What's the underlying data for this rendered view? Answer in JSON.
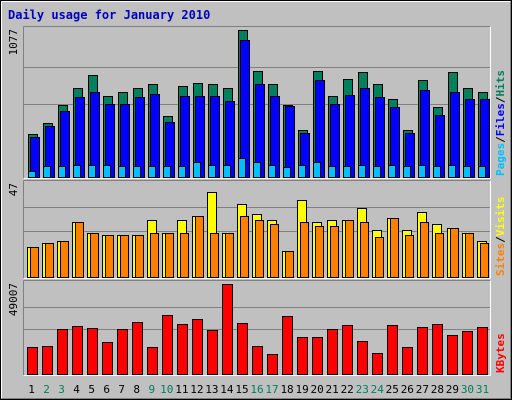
{
  "chart_data": [
    {
      "type": "bar",
      "title": "Daily usage for January 2010",
      "categories": [
        "1",
        "2",
        "3",
        "4",
        "5",
        "6",
        "7",
        "8",
        "9",
        "10",
        "11",
        "12",
        "13",
        "14",
        "15",
        "16",
        "17",
        "18",
        "19",
        "20",
        "21",
        "22",
        "23",
        "24",
        "25",
        "26",
        "27",
        "28",
        "29",
        "30",
        "31"
      ],
      "weekend_days": [
        "2",
        "3",
        "9",
        "10",
        "16",
        "17",
        "23",
        "24",
        "30",
        "31"
      ],
      "ymax_label": "1077",
      "ylim": [
        0,
        1077
      ],
      "right_legend": [
        {
          "name": "Pages",
          "color": "#00c0ff"
        },
        {
          "name": "Files",
          "color": "#0000ff"
        },
        {
          "name": "Hits",
          "color": "#00805c"
        }
      ],
      "series": [
        {
          "name": "Hits",
          "color": "#00805c",
          "values": [
            312,
            392,
            527,
            654,
            744,
            596,
            624,
            654,
            685,
            445,
            670,
            687,
            685,
            654,
            1077,
            780,
            685,
            527,
            342,
            780,
            592,
            715,
            766,
            685,
            572,
            342,
            713,
            512,
            766,
            654,
            624
          ]
        },
        {
          "name": "Files",
          "color": "#0000ff",
          "values": [
            295,
            377,
            480,
            585,
            624,
            535,
            537,
            585,
            606,
            403,
            597,
            597,
            593,
            560,
            1004,
            685,
            590,
            520,
            325,
            713,
            535,
            601,
            653,
            589,
            512,
            322,
            640,
            453,
            624,
            571,
            573
          ]
        },
        {
          "name": "Pages",
          "color": "#00c0ff",
          "values": [
            47,
            79,
            79,
            86,
            86,
            86,
            79,
            79,
            79,
            79,
            79,
            111,
            86,
            86,
            137,
            111,
            86,
            75,
            86,
            111,
            79,
            79,
            86,
            79,
            86,
            79,
            86,
            79,
            86,
            79,
            79
          ]
        }
      ]
    },
    {
      "type": "bar",
      "ymax_label": "47",
      "ylim": [
        0,
        47
      ],
      "right_legend": [
        {
          "name": "Sites",
          "color": "#ff8000"
        },
        {
          "name": "Visits",
          "color": "#ffff00"
        }
      ],
      "series": [
        {
          "name": "Visits",
          "color": "#ffff00",
          "values": [
            15,
            17,
            18,
            28,
            22,
            21,
            21,
            21,
            29,
            22,
            29,
            31,
            43,
            22,
            37,
            32,
            29,
            13,
            39,
            28,
            29,
            29,
            35,
            24,
            30,
            24,
            33,
            27,
            25,
            22,
            18
          ]
        },
        {
          "name": "Sites",
          "color": "#ff8000",
          "values": [
            15,
            17,
            18,
            28,
            22,
            21,
            21,
            21,
            22,
            22,
            22,
            31,
            22,
            22,
            31,
            29,
            27,
            13,
            28,
            26,
            26,
            29,
            28,
            20,
            30,
            21,
            28,
            22,
            25,
            22,
            17
          ]
        }
      ]
    },
    {
      "type": "bar",
      "ymax_label": "49007",
      "ylim": [
        0,
        49007
      ],
      "right_legend": [
        {
          "name": "KBytes",
          "color": "#ff0000"
        }
      ],
      "series": [
        {
          "name": "KBytes",
          "color": "#ff0000",
          "values": [
            14800,
            15100,
            24400,
            26200,
            24800,
            17300,
            24400,
            28100,
            14800,
            32000,
            27200,
            30100,
            23700,
            49007,
            27900,
            15300,
            11100,
            31600,
            19900,
            20200,
            24500,
            26500,
            18200,
            11700,
            26800,
            14900,
            25700,
            27200,
            21400,
            23500,
            25800
          ]
        }
      ]
    }
  ]
}
